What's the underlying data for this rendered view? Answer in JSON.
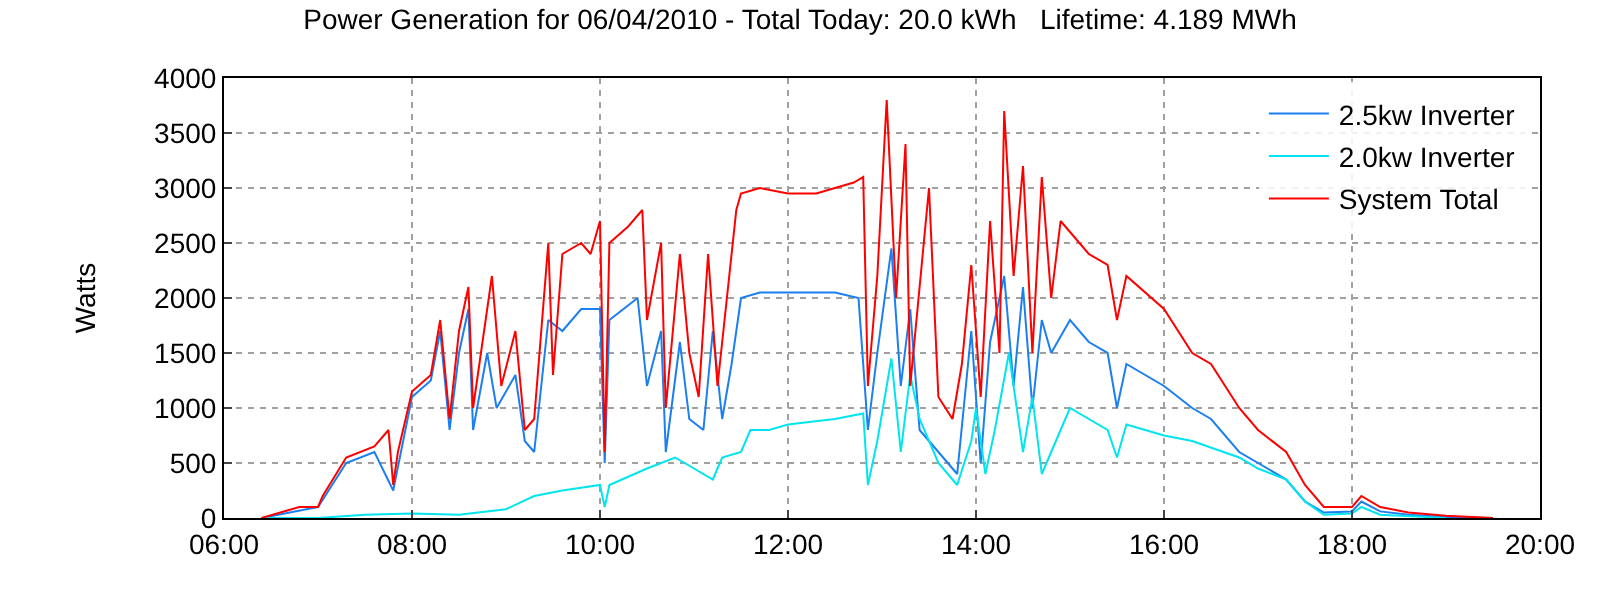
{
  "chart_data": {
    "type": "line",
    "title": "Power Generation for 06/04/2010 - Total Today: 20.0 kWh   Lifetime: 4.189 MWh",
    "ylabel": "Watts",
    "xlim": [
      6,
      20
    ],
    "xticks": [
      {
        "value": 6,
        "label": "06:00"
      },
      {
        "value": 8,
        "label": "08:00"
      },
      {
        "value": 10,
        "label": "10:00"
      },
      {
        "value": 12,
        "label": "12:00"
      },
      {
        "value": 14,
        "label": "14:00"
      },
      {
        "value": 16,
        "label": "16:00"
      },
      {
        "value": 18,
        "label": "18:00"
      },
      {
        "value": 20,
        "label": "20:00"
      }
    ],
    "ylim": [
      0,
      4000
    ],
    "yticks": [
      0,
      500,
      1000,
      1500,
      2000,
      2500,
      3000,
      3500,
      4000
    ],
    "grid": true,
    "legend": "top right",
    "line_style": "solid",
    "marker": "none",
    "series": [
      {
        "name": "2.5kw Inverter",
        "color": "#1c7ff0",
        "x": [
          6.4,
          6.7,
          7.0,
          7.3,
          7.6,
          7.8,
          8.0,
          8.2,
          8.3,
          8.4,
          8.5,
          8.6,
          8.65,
          8.8,
          8.9,
          9.1,
          9.2,
          9.3,
          9.45,
          9.6,
          9.8,
          10.0,
          10.05,
          10.1,
          10.4,
          10.5,
          10.65,
          10.7,
          10.85,
          10.95,
          11.1,
          11.2,
          11.3,
          11.4,
          11.5,
          11.7,
          12.0,
          12.5,
          12.75,
          12.85,
          12.95,
          13.1,
          13.2,
          13.3,
          13.4,
          13.6,
          13.8,
          13.95,
          14.05,
          14.15,
          14.3,
          14.4,
          14.5,
          14.6,
          14.7,
          14.8,
          15.0,
          15.2,
          15.4,
          15.5,
          15.6,
          16.0,
          16.3,
          16.5,
          16.8,
          17.0,
          17.3,
          17.5,
          17.7,
          18.0,
          18.1,
          18.3,
          18.6,
          19.0,
          19.5
        ],
        "values": [
          0,
          50,
          100,
          500,
          600,
          250,
          1100,
          1250,
          1700,
          800,
          1500,
          1900,
          800,
          1500,
          1000,
          1300,
          700,
          600,
          1800,
          1700,
          1900,
          1900,
          500,
          1800,
          2000,
          1200,
          1700,
          600,
          1600,
          900,
          800,
          1700,
          900,
          1400,
          2000,
          2050,
          2050,
          2050,
          2000,
          800,
          1500,
          2450,
          1200,
          1900,
          800,
          600,
          400,
          1700,
          500,
          1600,
          2200,
          1200,
          2100,
          1000,
          1800,
          1500,
          1800,
          1600,
          1500,
          1000,
          1400,
          1200,
          1000,
          900,
          600,
          500,
          350,
          150,
          50,
          60,
          150,
          60,
          30,
          10,
          0
        ]
      },
      {
        "name": "2.0kw Inverter",
        "color": "#00e5ee",
        "x": [
          6.4,
          7.0,
          7.5,
          8.0,
          8.5,
          9.0,
          9.3,
          9.6,
          10.0,
          10.05,
          10.1,
          10.5,
          10.8,
          11.0,
          11.2,
          11.3,
          11.5,
          11.6,
          11.8,
          12.0,
          12.5,
          12.8,
          12.85,
          12.95,
          13.1,
          13.2,
          13.3,
          13.4,
          13.6,
          13.8,
          13.95,
          14.0,
          14.1,
          14.2,
          14.35,
          14.5,
          14.6,
          14.7,
          14.9,
          15.0,
          15.2,
          15.4,
          15.5,
          15.6,
          16.0,
          16.3,
          16.8,
          17.0,
          17.3,
          17.5,
          17.7,
          18.0,
          18.1,
          18.3,
          19.0
        ],
        "values": [
          0,
          0,
          30,
          40,
          30,
          80,
          200,
          250,
          300,
          100,
          300,
          450,
          550,
          450,
          350,
          550,
          600,
          800,
          800,
          850,
          900,
          950,
          300,
          700,
          1450,
          600,
          1300,
          900,
          500,
          300,
          700,
          1000,
          400,
          800,
          1500,
          600,
          1100,
          400,
          800,
          1000,
          900,
          800,
          550,
          850,
          750,
          700,
          550,
          450,
          350,
          150,
          30,
          40,
          100,
          30,
          0
        ]
      },
      {
        "name": "System Total",
        "color": "#ff0000",
        "x": [
          6.4,
          6.6,
          6.8,
          7.0,
          7.05,
          7.3,
          7.6,
          7.75,
          7.8,
          7.85,
          8.0,
          8.2,
          8.3,
          8.4,
          8.5,
          8.6,
          8.65,
          8.75,
          8.85,
          8.95,
          9.1,
          9.2,
          9.3,
          9.45,
          9.5,
          9.6,
          9.8,
          9.9,
          10.0,
          10.05,
          10.1,
          10.3,
          10.45,
          10.5,
          10.65,
          10.7,
          10.85,
          10.95,
          11.05,
          11.15,
          11.25,
          11.35,
          11.45,
          11.5,
          11.7,
          12.0,
          12.3,
          12.5,
          12.7,
          12.8,
          12.85,
          12.95,
          13.05,
          13.15,
          13.25,
          13.3,
          13.5,
          13.6,
          13.75,
          13.85,
          13.95,
          14.05,
          14.15,
          14.25,
          14.3,
          14.4,
          14.5,
          14.6,
          14.7,
          14.8,
          14.9,
          15.0,
          15.2,
          15.4,
          15.5,
          15.6,
          16.0,
          16.3,
          16.5,
          16.8,
          17.0,
          17.3,
          17.5,
          17.7,
          18.0,
          18.1,
          18.3,
          18.6,
          19.0,
          19.5
        ],
        "values": [
          0,
          50,
          100,
          100,
          200,
          550,
          650,
          800,
          300,
          600,
          1150,
          1300,
          1800,
          900,
          1700,
          2100,
          1000,
          1600,
          2200,
          1200,
          1700,
          800,
          900,
          2500,
          1300,
          2400,
          2500,
          2400,
          2700,
          600,
          2500,
          2650,
          2800,
          1800,
          2500,
          1000,
          2400,
          1500,
          1100,
          2400,
          1200,
          2000,
          2800,
          2950,
          3000,
          2950,
          2950,
          3000,
          3050,
          3100,
          1200,
          2200,
          3800,
          2000,
          3400,
          1200,
          3000,
          1100,
          900,
          1400,
          2300,
          1100,
          2700,
          1500,
          3700,
          2200,
          3200,
          1500,
          3100,
          2000,
          2700,
          2600,
          2400,
          2300,
          1800,
          2200,
          1900,
          1500,
          1400,
          1000,
          800,
          600,
          300,
          100,
          100,
          200,
          100,
          50,
          20,
          0
        ]
      }
    ]
  }
}
